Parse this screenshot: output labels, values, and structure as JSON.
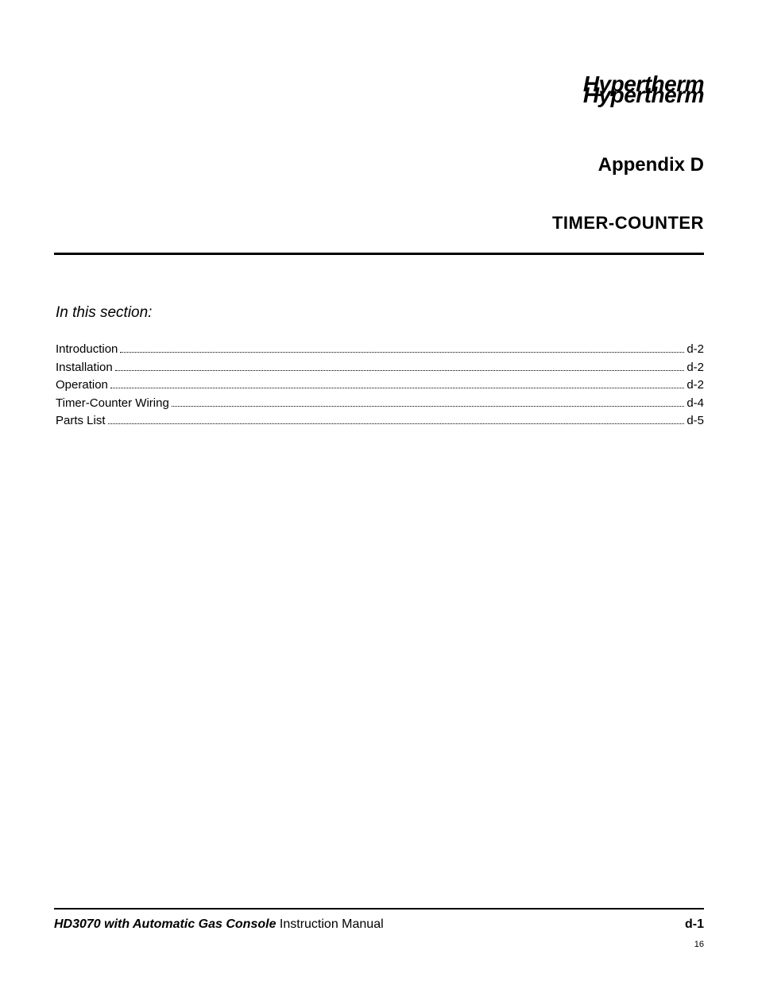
{
  "logo": {
    "line1": "Hypertherm",
    "line2": "Hypertherm"
  },
  "header": {
    "appendix": "Appendix D",
    "chapter": "TIMER-COUNTER"
  },
  "section_label": "In this section:",
  "toc": [
    {
      "label": "Introduction",
      "page": "d-2"
    },
    {
      "label": "Installation",
      "page": "d-2"
    },
    {
      "label": "Operation",
      "page": "d-2"
    },
    {
      "label": "Timer-Counter Wiring",
      "page": "d-4"
    },
    {
      "label": "Parts List",
      "page": "d-5"
    }
  ],
  "footer": {
    "product": "HD3070 with Automatic Gas Console",
    "doc": "  Instruction Manual",
    "page_label": "d-1",
    "sheet": "16"
  },
  "style": {
    "background": "#ffffff",
    "text_color": "#000000",
    "rule_color": "#000000",
    "title_fontsize_pt": 24,
    "chapter_fontsize_pt": 22,
    "body_fontsize_pt": 15
  }
}
